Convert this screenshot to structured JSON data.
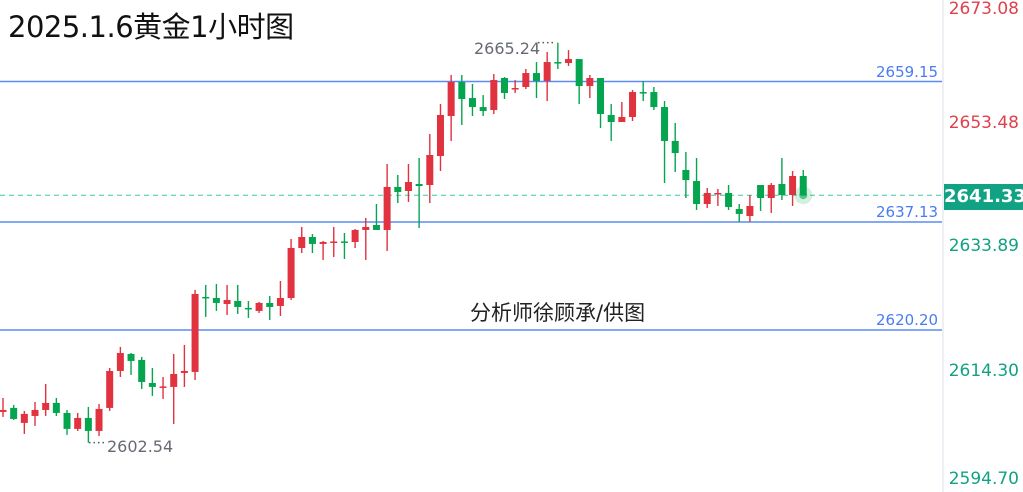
{
  "title": "2025.1.6黄金1小时图",
  "credit": "分析师徐顾承/供图",
  "colors": {
    "up": "#e0323f",
    "down": "#05a550",
    "level": "#5b8cf5",
    "current": "#11a283",
    "axis_upper": "#e0404c",
    "axis_lower": "#11a283"
  },
  "chart_data": {
    "type": "candlestick",
    "title": "2025.1.6黄金1小时图",
    "timeframe": "1小时",
    "y_axis_labels": [
      "2673.08",
      "2653.48",
      "2641.33",
      "2633.89",
      "2614.30",
      "2594.70"
    ],
    "ylim": [
      2594.7,
      2673.08
    ],
    "grid": false,
    "levels": [
      {
        "value": 2659.15,
        "label": "2659.15"
      },
      {
        "value": 2637.13,
        "label": "2637.13"
      },
      {
        "value": 2620.2,
        "label": "2620.20"
      }
    ],
    "current_price": {
      "value": 2641.33,
      "label": "2641.33"
    },
    "high_marker": {
      "value": 2665.24,
      "label": "2665.24"
    },
    "low_marker": {
      "value": 2602.54,
      "label": "2602.54"
    },
    "ohlc_columns": [
      "open",
      "high",
      "low",
      "close"
    ],
    "candles": [
      [
        2607.36,
        2609.55,
        2606.58,
        2607.67
      ],
      [
        2607.99,
        2608.46,
        2606.11,
        2606.26
      ],
      [
        2605.64,
        2607.52,
        2603.91,
        2607.05
      ],
      [
        2606.73,
        2608.93,
        2605.17,
        2607.67
      ],
      [
        2607.67,
        2611.75,
        2606.73,
        2608.77
      ],
      [
        2608.77,
        2609.55,
        2606.73,
        2607.2
      ],
      [
        2607.2,
        2607.67,
        2603.76,
        2604.7
      ],
      [
        2604.7,
        2607.2,
        2604.38,
        2606.42
      ],
      [
        2606.42,
        2608.14,
        2602.54,
        2604.38
      ],
      [
        2604.38,
        2608.61,
        2603.6,
        2607.83
      ],
      [
        2607.99,
        2614.25,
        2607.52,
        2613.78
      ],
      [
        2613.78,
        2617.55,
        2612.84,
        2616.6
      ],
      [
        2616.45,
        2616.6,
        2613.16,
        2615.35
      ],
      [
        2615.51,
        2615.98,
        2610.96,
        2612.06
      ],
      [
        2611.9,
        2614.25,
        2609.87,
        2611.28
      ],
      [
        2611.2,
        2612.84,
        2609.4,
        2611.36
      ],
      [
        2611.28,
        2616.45,
        2605.48,
        2613.31
      ],
      [
        2613.47,
        2617.86,
        2611.28,
        2613.78
      ],
      [
        2613.63,
        2626.48,
        2612.37,
        2625.85
      ],
      [
        2625.38,
        2627.26,
        2622.25,
        2625.22
      ],
      [
        2625.22,
        2627.42,
        2623.19,
        2624.44
      ],
      [
        2624.28,
        2627.26,
        2622.56,
        2624.91
      ],
      [
        2624.75,
        2627.26,
        2622.72,
        2623.81
      ],
      [
        2623.66,
        2624.75,
        2622.09,
        2623.5
      ],
      [
        2623.19,
        2624.6,
        2622.87,
        2624.44
      ],
      [
        2624.44,
        2625.54,
        2621.78,
        2623.81
      ],
      [
        2623.97,
        2627.89,
        2622.4,
        2625.22
      ],
      [
        2625.22,
        2634.47,
        2624.91,
        2633.06
      ],
      [
        2633.06,
        2636.35,
        2632.27,
        2634.78
      ],
      [
        2634.78,
        2635.25,
        2632.27,
        2633.69
      ],
      [
        2633.69,
        2634.16,
        2631.18,
        2634.0
      ],
      [
        2633.92,
        2636.35,
        2631.65,
        2634.08
      ],
      [
        2634.08,
        2635.41,
        2631.33,
        2633.92
      ],
      [
        2634.0,
        2636.04,
        2633.06,
        2635.88
      ],
      [
        2635.88,
        2637.76,
        2631.18,
        2636.35
      ],
      [
        2636.66,
        2639.95,
        2635.88,
        2635.88
      ],
      [
        2635.88,
        2646.22,
        2632.59,
        2642.62
      ],
      [
        2642.62,
        2644.5,
        2640.11,
        2641.83
      ],
      [
        2641.99,
        2646.22,
        2640.27,
        2643.4
      ],
      [
        2643.09,
        2647.16,
        2636.19,
        2642.77
      ],
      [
        2642.93,
        2650.92,
        2640.11,
        2647.63
      ],
      [
        2647.47,
        2655.62,
        2645.12,
        2653.9
      ],
      [
        2653.74,
        2660.17,
        2649.83,
        2659.07
      ],
      [
        2659.07,
        2660.17,
        2652.33,
        2656.41
      ],
      [
        2656.56,
        2658.76,
        2653.74,
        2655.15
      ],
      [
        2655.15,
        2657.03,
        2653.74,
        2654.53
      ],
      [
        2654.68,
        2660.32,
        2654.06,
        2659.38
      ],
      [
        2659.7,
        2659.85,
        2656.41,
        2657.35
      ],
      [
        2657.97,
        2659.38,
        2657.35,
        2658.13
      ],
      [
        2658.29,
        2661.11,
        2657.97,
        2660.48
      ],
      [
        2660.48,
        2662.2,
        2656.56,
        2659.23
      ],
      [
        2659.23,
        2663.77,
        2656.09,
        2662.2
      ],
      [
        2662.2,
        2665.24,
        2661.11,
        2662.05
      ],
      [
        2662.05,
        2664.08,
        2661.58,
        2662.67
      ],
      [
        2662.67,
        2662.67,
        2655.62,
        2658.44
      ],
      [
        2658.44,
        2660.17,
        2656.56,
        2659.7
      ],
      [
        2659.7,
        2659.7,
        2651.86,
        2654.06
      ],
      [
        2653.9,
        2655.62,
        2649.83,
        2652.8
      ],
      [
        2652.8,
        2655.94,
        2652.8,
        2653.59
      ],
      [
        2653.59,
        2657.82,
        2652.96,
        2657.5
      ],
      [
        2657.5,
        2659.23,
        2656.09,
        2657.35
      ],
      [
        2657.5,
        2658.29,
        2654.68,
        2655.15
      ],
      [
        2655.15,
        2656.09,
        2643.24,
        2649.83
      ],
      [
        2649.83,
        2652.65,
        2644.97,
        2647.94
      ],
      [
        2645.28,
        2648.1,
        2640.89,
        2643.71
      ],
      [
        2643.56,
        2647.16,
        2639.01,
        2639.95
      ],
      [
        2639.95,
        2642.46,
        2639.33,
        2641.68
      ],
      [
        2641.52,
        2642.3,
        2639.64,
        2641.68
      ],
      [
        2641.68,
        2642.93,
        2639.01,
        2639.48
      ],
      [
        2639.17,
        2639.95,
        2637.13,
        2638.39
      ],
      [
        2638.07,
        2641.36,
        2637.13,
        2639.64
      ],
      [
        2642.93,
        2642.93,
        2638.86,
        2640.89
      ],
      [
        2640.89,
        2643.24,
        2638.54,
        2642.93
      ],
      [
        2643.09,
        2647.16,
        2640.58,
        2641.36
      ],
      [
        2641.36,
        2645.12,
        2639.64,
        2644.34
      ],
      [
        2644.34,
        2645.28,
        2641.33,
        2641.33
      ]
    ]
  }
}
